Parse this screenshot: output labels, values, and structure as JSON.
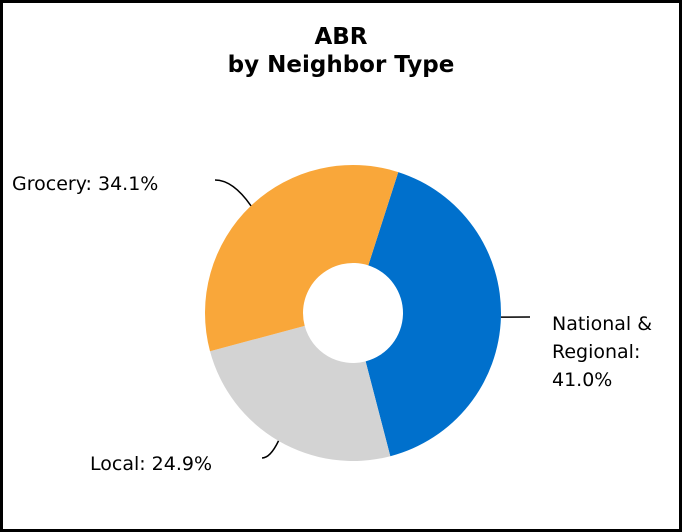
{
  "chart_data": {
    "type": "donut",
    "title": [
      "ABR",
      "by Neighbor Type"
    ],
    "values": [
      41.0,
      24.9,
      34.1
    ],
    "value_labels": [
      "National & Regional: 41.0%",
      "Local: 24.9%",
      "Grocery: 34.1%"
    ],
    "colors": [
      "#0070cc",
      "#d3d3d3",
      "#f9a73a"
    ]
  }
}
